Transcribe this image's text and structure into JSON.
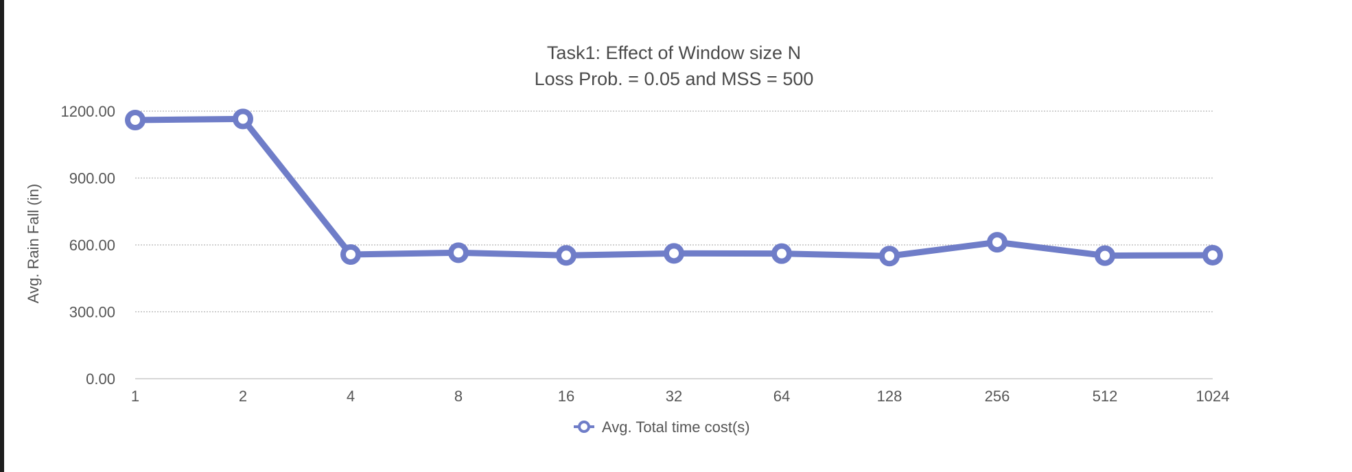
{
  "chart_data": {
    "type": "line",
    "title": "Task1:  Effect of Window size N",
    "subtitle": "Loss Prob. = 0.05 and MSS = 500",
    "xlabel": "",
    "ylabel": "Avg. Rain Fall (in)",
    "categories": [
      "1",
      "2",
      "4",
      "8",
      "16",
      "32",
      "64",
      "128",
      "256",
      "512",
      "1024"
    ],
    "series": [
      {
        "name": "Avg. Total time cost(s)",
        "color": "#6f7dc8",
        "values": [
          1160,
          1165,
          557,
          565,
          553,
          562,
          561,
          550,
          612,
          552,
          554
        ]
      }
    ],
    "ylim": [
      0,
      1200
    ],
    "yticks": [
      0,
      300,
      600,
      900,
      1200
    ],
    "ytick_labels": [
      "0.00",
      "300.00",
      "600.00",
      "900.00",
      "1200.00"
    ],
    "grid": true,
    "legend": "bottom-center"
  }
}
